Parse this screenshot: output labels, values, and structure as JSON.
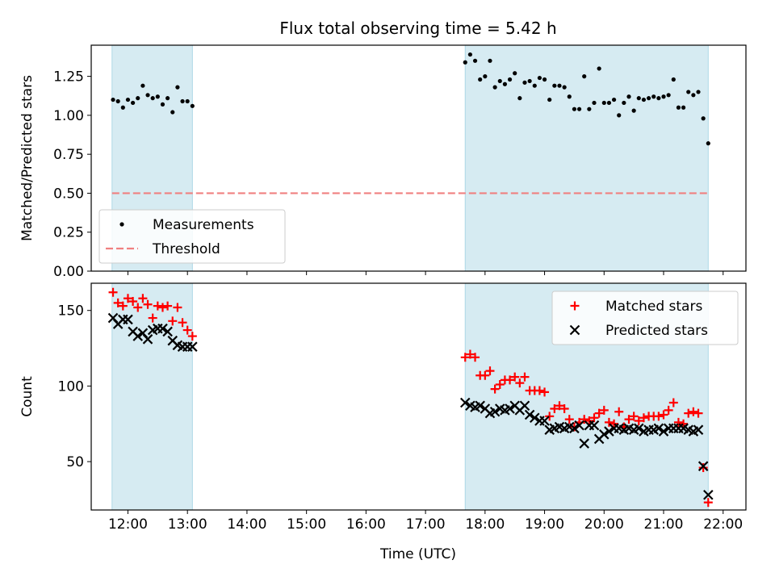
{
  "title": "Flux total observing time = 5.42 h",
  "xlabel": "Time (UTC)",
  "colors": {
    "band": "#add8e6",
    "threshold": "#f08080",
    "matched": "#ff0000",
    "predicted": "#000000",
    "measurement": "#000000"
  },
  "x_ticks": [
    "12:00",
    "13:00",
    "14:00",
    "15:00",
    "16:00",
    "17:00",
    "18:00",
    "19:00",
    "20:00",
    "21:00",
    "22:00"
  ],
  "chart_data": [
    {
      "type": "scatter",
      "ylabel": "Matched/Predicted stars",
      "xlim": [
        "11:23",
        "22:23"
      ],
      "ylim": [
        0,
        1.45
      ],
      "y_ticks": [
        "0.00",
        "0.25",
        "0.50",
        "0.75",
        "1.00",
        "1.25"
      ],
      "observing_windows": [
        [
          "11:44",
          "13:05"
        ],
        [
          "17:40",
          "21:45"
        ]
      ],
      "threshold": 0.5,
      "threshold_range": [
        "11:44",
        "21:45"
      ],
      "legend": {
        "position": "lower-left",
        "entries": [
          "Measurements",
          "Threshold"
        ]
      },
      "series": [
        {
          "name": "Measurements",
          "marker": "dot",
          "x": [
            "11:45",
            "11:50",
            "11:55",
            "12:00",
            "12:05",
            "12:10",
            "12:15",
            "12:20",
            "12:25",
            "12:30",
            "12:35",
            "12:40",
            "12:45",
            "12:50",
            "12:55",
            "13:00",
            "13:05",
            "17:40",
            "17:45",
            "17:50",
            "17:55",
            "18:00",
            "18:05",
            "18:10",
            "18:15",
            "18:20",
            "18:25",
            "18:30",
            "18:35",
            "18:40",
            "18:45",
            "18:50",
            "18:55",
            "19:00",
            "19:05",
            "19:10",
            "19:15",
            "19:20",
            "19:25",
            "19:30",
            "19:35",
            "19:40",
            "19:45",
            "19:50",
            "19:55",
            "20:00",
            "20:05",
            "20:10",
            "20:15",
            "20:20",
            "20:25",
            "20:30",
            "20:35",
            "20:40",
            "20:45",
            "20:50",
            "20:55",
            "21:00",
            "21:05",
            "21:10",
            "21:15",
            "21:20",
            "21:25",
            "21:30",
            "21:35",
            "21:40",
            "21:45"
          ],
          "y": [
            1.1,
            1.09,
            1.05,
            1.1,
            1.08,
            1.11,
            1.19,
            1.13,
            1.11,
            1.12,
            1.07,
            1.11,
            1.02,
            1.18,
            1.09,
            1.09,
            1.06,
            1.34,
            1.39,
            1.35,
            1.23,
            1.25,
            1.35,
            1.18,
            1.22,
            1.2,
            1.23,
            1.27,
            1.11,
            1.21,
            1.22,
            1.19,
            1.24,
            1.23,
            1.1,
            1.19,
            1.19,
            1.18,
            1.12,
            1.04,
            1.04,
            1.25,
            1.04,
            1.08,
            1.3,
            1.08,
            1.08,
            1.1,
            1.0,
            1.08,
            1.12,
            1.03,
            1.11,
            1.1,
            1.11,
            1.12,
            1.11,
            1.12,
            1.13,
            1.23,
            1.05,
            1.05,
            1.15,
            1.13,
            1.15,
            0.98,
            0.82
          ]
        }
      ]
    },
    {
      "type": "scatter",
      "ylabel": "Count",
      "xlim": [
        "11:23",
        "22:23"
      ],
      "ylim": [
        18,
        168
      ],
      "y_ticks": [
        "50",
        "100",
        "150"
      ],
      "observing_windows": [
        [
          "11:44",
          "13:05"
        ],
        [
          "17:40",
          "21:45"
        ]
      ],
      "legend": {
        "position": "top-right",
        "entries": [
          "Matched stars",
          "Predicted stars"
        ]
      },
      "series": [
        {
          "name": "Matched stars",
          "marker": "plus",
          "x": [
            "11:45",
            "11:50",
            "11:55",
            "12:00",
            "12:05",
            "12:10",
            "12:15",
            "12:20",
            "12:25",
            "12:30",
            "12:35",
            "12:40",
            "12:45",
            "12:50",
            "12:55",
            "13:00",
            "13:05",
            "17:40",
            "17:45",
            "17:50",
            "17:55",
            "18:00",
            "18:05",
            "18:10",
            "18:15",
            "18:20",
            "18:25",
            "18:30",
            "18:35",
            "18:40",
            "18:45",
            "18:50",
            "18:55",
            "19:00",
            "19:05",
            "19:10",
            "19:15",
            "19:20",
            "19:25",
            "19:30",
            "19:35",
            "19:40",
            "19:45",
            "19:50",
            "19:55",
            "20:00",
            "20:05",
            "20:10",
            "20:15",
            "20:20",
            "20:25",
            "20:30",
            "20:35",
            "20:40",
            "20:45",
            "20:50",
            "20:55",
            "21:00",
            "21:05",
            "21:10",
            "21:15",
            "21:20",
            "21:25",
            "21:30",
            "21:35",
            "21:40",
            "21:45"
          ],
          "y": [
            162,
            155,
            153,
            158,
            156,
            152,
            158,
            154,
            145,
            153,
            152,
            153,
            143,
            152,
            142,
            137,
            133,
            119,
            121,
            119,
            107,
            107,
            110,
            98,
            101,
            104,
            104,
            106,
            102,
            106,
            97,
            97,
            97,
            96,
            80,
            85,
            87,
            85,
            78,
            73,
            76,
            78,
            77,
            79,
            82,
            84,
            76,
            75,
            83,
            73,
            78,
            80,
            77,
            79,
            80,
            80,
            80,
            81,
            84,
            89,
            76,
            75,
            82,
            83,
            82,
            46,
            23
          ]
        },
        {
          "name": "Predicted stars",
          "marker": "x",
          "x": [
            "11:45",
            "11:50",
            "11:55",
            "12:00",
            "12:05",
            "12:10",
            "12:15",
            "12:20",
            "12:25",
            "12:30",
            "12:35",
            "12:40",
            "12:45",
            "12:50",
            "12:55",
            "13:00",
            "13:05",
            "17:40",
            "17:45",
            "17:50",
            "17:55",
            "18:00",
            "18:05",
            "18:10",
            "18:15",
            "18:20",
            "18:25",
            "18:30",
            "18:35",
            "18:40",
            "18:45",
            "18:50",
            "18:55",
            "19:00",
            "19:05",
            "19:10",
            "19:15",
            "19:20",
            "19:25",
            "19:30",
            "19:35",
            "19:40",
            "19:45",
            "19:50",
            "19:55",
            "20:00",
            "20:05",
            "20:10",
            "20:15",
            "20:20",
            "20:25",
            "20:30",
            "20:35",
            "20:40",
            "20:45",
            "20:50",
            "20:55",
            "21:00",
            "21:05",
            "21:10",
            "21:15",
            "21:20",
            "21:25",
            "21:30",
            "21:35",
            "21:40",
            "21:45"
          ],
          "y": [
            145,
            141,
            144,
            144,
            136,
            133,
            135,
            131,
            137,
            138,
            138,
            136,
            130,
            127,
            126,
            126,
            126,
            89,
            87,
            86,
            87,
            85,
            82,
            83,
            85,
            84,
            85,
            87,
            84,
            87,
            81,
            79,
            77,
            77,
            71,
            72,
            73,
            72,
            73,
            72,
            74,
            62,
            74,
            74,
            65,
            68,
            70,
            72,
            72,
            71,
            72,
            71,
            72,
            70,
            71,
            71,
            72,
            70,
            72,
            72,
            72,
            72,
            71,
            70,
            71,
            47,
            28
          ]
        }
      ]
    }
  ]
}
